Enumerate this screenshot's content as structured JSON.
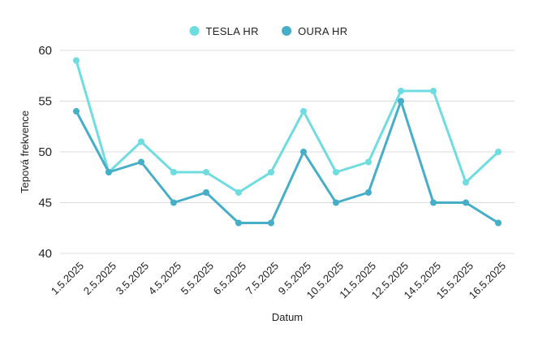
{
  "chart_data": {
    "type": "line",
    "title": "",
    "xlabel": "Datum",
    "ylabel": "Tepová frekvence",
    "ylim": [
      40,
      60
    ],
    "yticks": [
      40,
      45,
      50,
      55,
      60
    ],
    "grid": "horizontal",
    "legend_position": "top-center",
    "categories": [
      "1.5.2025",
      "2.5.2025",
      "3.5.2025",
      "4.5.2025",
      "5.5.2025",
      "6.5.2025",
      "7.5.2025",
      "9.5.2025",
      "10.5.2025",
      "11.5.2025",
      "12.5.2025",
      "14.5.2025",
      "15.5.2025",
      "16.5.2025"
    ],
    "series": [
      {
        "name": "TESLA HR",
        "color": "#6fdde0",
        "values": [
          59,
          48,
          51,
          48,
          48,
          46,
          48,
          54,
          48,
          49,
          56,
          56,
          47,
          50
        ]
      },
      {
        "name": "OURA HR",
        "color": "#47aec8",
        "values": [
          54,
          48,
          49,
          45,
          46,
          43,
          43,
          50,
          45,
          46,
          55,
          45,
          45,
          43
        ]
      }
    ]
  }
}
